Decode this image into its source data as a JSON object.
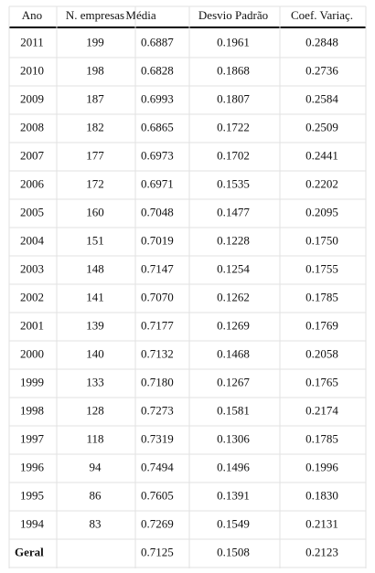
{
  "table": {
    "header": [
      "Ano",
      "N. empresas",
      "Média",
      "Desvio Padrão",
      "Coef. Variaç."
    ],
    "rows": [
      [
        "2011",
        "199",
        "0.6887",
        "0.1961",
        "0.2848"
      ],
      [
        "2010",
        "198",
        "0.6828",
        "0.1868",
        "0.2736"
      ],
      [
        "2009",
        "187",
        "0.6993",
        "0.1807",
        "0.2584"
      ],
      [
        "2008",
        "182",
        "0.6865",
        "0.1722",
        "0.2509"
      ],
      [
        "2007",
        "177",
        "0.6973",
        "0.1702",
        "0.2441"
      ],
      [
        "2006",
        "172",
        "0.6971",
        "0.1535",
        "0.2202"
      ],
      [
        "2005",
        "160",
        "0.7048",
        "0.1477",
        "0.2095"
      ],
      [
        "2004",
        "151",
        "0.7019",
        "0.1228",
        "0.1750"
      ],
      [
        "2003",
        "148",
        "0.7147",
        "0.1254",
        "0.1755"
      ],
      [
        "2002",
        "141",
        "0.7070",
        "0.1262",
        "0.1785"
      ],
      [
        "2001",
        "139",
        "0.7177",
        "0.1269",
        "0.1769"
      ],
      [
        "2000",
        "140",
        "0.7132",
        "0.1468",
        "0.2058"
      ],
      [
        "1999",
        "133",
        "0.7180",
        "0.1267",
        "0.1765"
      ],
      [
        "1998",
        "128",
        "0.7273",
        "0.1581",
        "0.2174"
      ],
      [
        "1997",
        "118",
        "0.7319",
        "0.1306",
        "0.1785"
      ],
      [
        "1996",
        "94",
        "0.7494",
        "0.1496",
        "0.1996"
      ],
      [
        "1995",
        "86",
        "0.7605",
        "0.1391",
        "0.1830"
      ],
      [
        "1994",
        "83",
        "0.7269",
        "0.1549",
        "0.2131"
      ],
      [
        "Geral",
        null,
        "0.7125",
        "0.1508",
        "0.2123"
      ]
    ]
  }
}
